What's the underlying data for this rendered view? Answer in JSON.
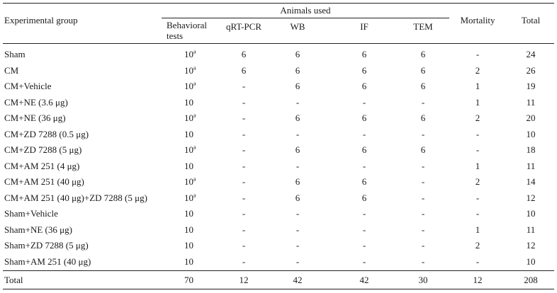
{
  "table": {
    "header": {
      "experimental_group": "Experimental group",
      "animals_used": "Animals used",
      "behavioral_line1": "Behavioral",
      "behavioral_line2": "tests",
      "qrtpcr": "qRT-PCR",
      "wb": "WB",
      "if": "IF",
      "tem": "TEM",
      "mortality": "Mortality",
      "total": "Total"
    },
    "rows": [
      {
        "group": "Sham",
        "behavioral": "10",
        "sup": "a",
        "qrtpcr": "6",
        "wb": "6",
        "if": "6",
        "tem": "6",
        "mortality": "-",
        "total": "24"
      },
      {
        "group": "CM",
        "behavioral": "10",
        "sup": "a",
        "qrtpcr": "6",
        "wb": "6",
        "if": "6",
        "tem": "6",
        "mortality": "2",
        "total": "26"
      },
      {
        "group": "CM+Vehicle",
        "behavioral": "10",
        "sup": "a",
        "qrtpcr": "-",
        "wb": "6",
        "if": "6",
        "tem": "6",
        "mortality": "1",
        "total": "19"
      },
      {
        "group": "CM+NE (3.6 μg)",
        "behavioral": "10",
        "sup": "",
        "qrtpcr": "-",
        "wb": "-",
        "if": "-",
        "tem": "-",
        "mortality": "1",
        "total": "11"
      },
      {
        "group": "CM+NE (36 μg)",
        "behavioral": "10",
        "sup": "a",
        "qrtpcr": "-",
        "wb": "6",
        "if": "6",
        "tem": "6",
        "mortality": "2",
        "total": "20"
      },
      {
        "group": "CM+ZD 7288 (0.5 μg)",
        "behavioral": "10",
        "sup": "",
        "qrtpcr": "-",
        "wb": "-",
        "if": "-",
        "tem": "-",
        "mortality": "-",
        "total": "10"
      },
      {
        "group": "CM+ZD 7288 (5 μg)",
        "behavioral": "10",
        "sup": "a",
        "qrtpcr": "-",
        "wb": "6",
        "if": "6",
        "tem": "6",
        "mortality": "-",
        "total": "18"
      },
      {
        "group": "CM+AM 251 (4 μg)",
        "behavioral": "10",
        "sup": "",
        "qrtpcr": "-",
        "wb": "-",
        "if": "-",
        "tem": "-",
        "mortality": "1",
        "total": "11"
      },
      {
        "group": "CM+AM 251 (40 μg)",
        "behavioral": "10",
        "sup": "a",
        "qrtpcr": "-",
        "wb": "6",
        "if": "6",
        "tem": "-",
        "mortality": "2",
        "total": "14"
      },
      {
        "group": "CM+AM 251 (40 μg)+ZD 7288 (5 μg)",
        "behavioral": "10",
        "sup": "a",
        "qrtpcr": "-",
        "wb": "6",
        "if": "6",
        "tem": "-",
        "mortality": "-",
        "total": "12"
      },
      {
        "group": "Sham+Vehicle",
        "behavioral": "10",
        "sup": "",
        "qrtpcr": "-",
        "wb": "-",
        "if": "-",
        "tem": "-",
        "mortality": "-",
        "total": "10"
      },
      {
        "group": "Sham+NE (36 μg)",
        "behavioral": "10",
        "sup": "",
        "qrtpcr": "-",
        "wb": "-",
        "if": "-",
        "tem": "-",
        "mortality": "1",
        "total": "11"
      },
      {
        "group": "Sham+ZD 7288 (5 μg)",
        "behavioral": "10",
        "sup": "",
        "qrtpcr": "-",
        "wb": "-",
        "if": "-",
        "tem": "-",
        "mortality": "2",
        "total": "12"
      },
      {
        "group": "Sham+AM 251 (40 μg)",
        "behavioral": "10",
        "sup": "",
        "qrtpcr": "-",
        "wb": "-",
        "if": "-",
        "tem": "-",
        "mortality": "-",
        "total": "10"
      }
    ],
    "total_row": {
      "group": "Total",
      "behavioral": "70",
      "qrtpcr": "12",
      "wb": "42",
      "if": "42",
      "tem": "30",
      "mortality": "12",
      "total": "208"
    }
  }
}
